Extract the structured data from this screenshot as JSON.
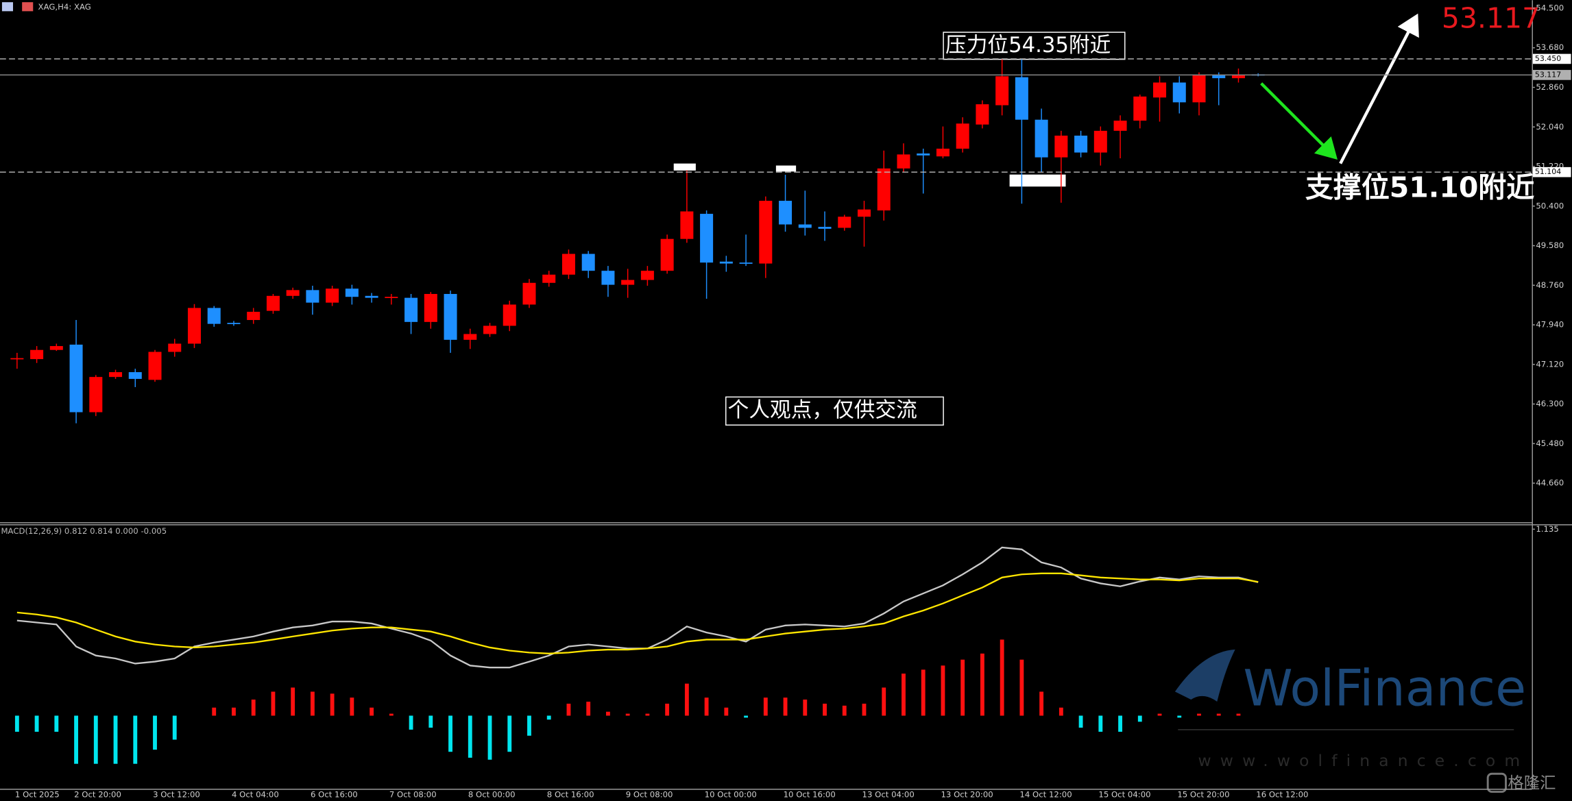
{
  "header": {
    "symbol": "XAG,H4: XAG"
  },
  "annotations": {
    "resistance": "压力位54.35附近",
    "support": "支撑位51.10附近",
    "price": "53.117",
    "disclaimer": "个人观点，仅供交流"
  },
  "watermark": {
    "brand": "WolFinance",
    "url": "www.wolfinance.com",
    "logo": "格隆汇"
  },
  "chart_data": [
    {
      "type": "candlestick",
      "categories": [
        "1 Oct 2025",
        null,
        null,
        "2 Oct 20:00",
        null,
        null,
        null,
        "3 Oct 12:00",
        null,
        null,
        null,
        "4 Oct 04:00",
        null,
        null,
        null,
        "6 Oct 16:00",
        null,
        null,
        null,
        "7 Oct 08:00",
        null,
        null,
        null,
        "8 Oct 00:00",
        null,
        null,
        null,
        "8 Oct 16:00",
        null,
        null,
        null,
        "9 Oct 08:00",
        null,
        null,
        null,
        "10 Oct 00:00",
        null,
        null,
        null,
        "10 Oct 16:00",
        null,
        null,
        null,
        "13 Oct 04:00",
        null,
        null,
        null,
        "13 Oct 20:00",
        null,
        null,
        null,
        "14 Oct 12:00",
        null,
        null,
        null,
        "15 Oct 04:00",
        null,
        null,
        null,
        "15 Oct 20:00",
        null,
        null,
        null,
        "16 Oct 12:00"
      ],
      "open": [
        47.23,
        47.23,
        47.42,
        47.53,
        46.13,
        46.86,
        46.96,
        46.8,
        47.38,
        47.55,
        48.29,
        47.98,
        48.04,
        48.23,
        48.54,
        48.66,
        48.4,
        48.69,
        48.54,
        48.5,
        48.5,
        48.0,
        48.58,
        47.63,
        47.75,
        47.92,
        48.36,
        48.81,
        48.98,
        49.41,
        49.06,
        48.77,
        48.87,
        49.06,
        49.72,
        50.24,
        49.25,
        49.23,
        49.21,
        50.51,
        50.02,
        49.97,
        49.95,
        50.18,
        50.31,
        51.18,
        51.49,
        51.43,
        51.59,
        52.09,
        52.49,
        53.07,
        52.19,
        51.41,
        51.86,
        51.51,
        51.96,
        52.17,
        52.65,
        52.96,
        52.55,
        53.11,
        53.05,
        53.13
      ],
      "high": [
        47.36,
        47.5,
        47.55,
        48.04,
        46.9,
        47.01,
        47.03,
        47.42,
        47.65,
        48.37,
        48.33,
        48.02,
        48.29,
        48.58,
        48.71,
        48.75,
        48.75,
        48.77,
        48.6,
        48.58,
        48.58,
        48.62,
        48.65,
        47.86,
        47.98,
        48.44,
        48.89,
        49.06,
        49.5,
        49.47,
        49.16,
        49.1,
        49.16,
        49.81,
        51.14,
        50.31,
        49.37,
        49.81,
        50.6,
        51.05,
        50.72,
        50.29,
        50.22,
        50.51,
        51.55,
        51.7,
        51.59,
        52.05,
        52.24,
        52.59,
        53.44,
        53.44,
        52.42,
        51.96,
        51.96,
        52.05,
        52.28,
        52.71,
        53.09,
        53.09,
        53.17,
        53.17,
        53.25,
        53.15
      ],
      "low": [
        47.03,
        47.15,
        47.4,
        45.9,
        46.05,
        46.82,
        46.65,
        46.76,
        47.28,
        47.46,
        47.9,
        47.92,
        47.96,
        48.17,
        48.48,
        48.15,
        48.33,
        48.36,
        48.4,
        48.36,
        47.75,
        47.86,
        47.36,
        47.44,
        47.69,
        47.81,
        48.29,
        48.73,
        48.89,
        48.91,
        48.52,
        48.5,
        48.75,
        49.0,
        49.64,
        48.48,
        49.04,
        49.16,
        48.91,
        49.87,
        49.79,
        49.68,
        49.89,
        49.56,
        50.1,
        51.1,
        50.66,
        51.39,
        51.51,
        52.01,
        52.28,
        50.45,
        51.1,
        50.47,
        51.41,
        51.24,
        51.39,
        52.01,
        52.15,
        52.32,
        52.28,
        52.49,
        52.96,
        53.09
      ],
      "close": [
        47.25,
        47.42,
        47.5,
        46.13,
        46.86,
        46.96,
        46.82,
        47.38,
        47.55,
        48.29,
        47.96,
        47.96,
        48.21,
        48.54,
        48.66,
        48.4,
        48.69,
        48.52,
        48.5,
        48.52,
        48.0,
        48.58,
        47.63,
        47.75,
        47.92,
        48.36,
        48.81,
        48.98,
        49.41,
        49.06,
        48.77,
        48.87,
        49.06,
        49.72,
        50.29,
        49.23,
        49.21,
        49.21,
        50.51,
        50.02,
        49.95,
        49.93,
        50.18,
        50.33,
        51.18,
        51.47,
        51.45,
        51.59,
        52.11,
        52.51,
        53.09,
        52.19,
        51.41,
        51.86,
        51.51,
        51.96,
        52.17,
        52.67,
        52.96,
        52.55,
        53.11,
        53.05,
        53.11,
        53.12
      ],
      "up_color": "#ff0000",
      "down_color": "#1e8fff",
      "ylim": [
        43.85,
        54.666
      ],
      "yticks": [
        {
          "value": 54.5,
          "label": "54.500"
        },
        {
          "value": 53.68,
          "label": "53.680"
        },
        {
          "value": 52.86,
          "label": "52.860"
        },
        {
          "value": 52.04,
          "label": "52.040"
        },
        {
          "value": 51.22,
          "label": "51.220"
        },
        {
          "value": 50.4,
          "label": "50.400"
        },
        {
          "value": 49.58,
          "label": "49.580"
        },
        {
          "value": 48.76,
          "label": "48.760"
        },
        {
          "value": 47.94,
          "label": "47.940"
        },
        {
          "value": 47.12,
          "label": "47.120"
        },
        {
          "value": 46.3,
          "label": "46.300"
        },
        {
          "value": 45.48,
          "label": "45.480"
        },
        {
          "value": 44.66,
          "label": "44.660"
        }
      ],
      "hlines": [
        {
          "value": 53.45,
          "label": "53.450",
          "style": "dashed"
        },
        {
          "value": 53.117,
          "label": "53.117",
          "style": "solid"
        },
        {
          "value": 51.104,
          "label": "51.104",
          "style": "dashed"
        }
      ],
      "grid": false
    },
    {
      "type": "macd",
      "title": "MACD(12,26,9) 0.812 0.814 0.000 -0.005",
      "ylim": [
        -0.445,
        1.165
      ],
      "yticks": [
        {
          "value": 1.135,
          "label": "1.135"
        }
      ],
      "series": [
        {
          "kind": "histogram",
          "color": "#ff1010",
          "negative_color": "#00e5ee",
          "values": [
            -0.098,
            -0.098,
            -0.098,
            -0.293,
            -0.293,
            -0.293,
            -0.293,
            -0.207,
            -0.146,
            0,
            0.049,
            0.049,
            0.098,
            0.146,
            0.171,
            0.146,
            0.134,
            0.11,
            0.049,
            0.012,
            -0.085,
            -0.073,
            -0.22,
            -0.256,
            -0.268,
            -0.22,
            -0.122,
            -0.024,
            0.073,
            0.085,
            0.024,
            0.012,
            0.012,
            0.073,
            0.195,
            0.11,
            0.049,
            -0.012,
            0.11,
            0.11,
            0.098,
            0.073,
            0.061,
            0.073,
            0.171,
            0.256,
            0.28,
            0.305,
            0.341,
            0.378,
            0.463,
            0.341,
            0.146,
            0.049,
            -0.073,
            -0.098,
            -0.098,
            -0.037,
            0.012,
            -0.012,
            0.012,
            0.012,
            0.012,
            0
          ]
        },
        {
          "kind": "line",
          "color": "#c8c8c8",
          "values": [
            0.579,
            0.567,
            0.555,
            0.421,
            0.366,
            0.348,
            0.317,
            0.329,
            0.348,
            0.421,
            0.445,
            0.463,
            0.482,
            0.512,
            0.537,
            0.549,
            0.573,
            0.573,
            0.561,
            0.53,
            0.5,
            0.457,
            0.366,
            0.305,
            0.293,
            0.293,
            0.329,
            0.366,
            0.421,
            0.433,
            0.421,
            0.409,
            0.409,
            0.463,
            0.543,
            0.506,
            0.482,
            0.451,
            0.524,
            0.549,
            0.555,
            0.549,
            0.543,
            0.561,
            0.622,
            0.695,
            0.744,
            0.793,
            0.86,
            0.933,
            1.024,
            1.012,
            0.933,
            0.902,
            0.835,
            0.805,
            0.787,
            0.817,
            0.841,
            0.829,
            0.848,
            0.841,
            0.841,
            0.812
          ]
        },
        {
          "kind": "line",
          "color": "#ffe600",
          "values": [
            0.628,
            0.616,
            0.598,
            0.567,
            0.524,
            0.482,
            0.451,
            0.433,
            0.421,
            0.415,
            0.421,
            0.433,
            0.445,
            0.463,
            0.482,
            0.5,
            0.518,
            0.53,
            0.537,
            0.537,
            0.524,
            0.512,
            0.482,
            0.445,
            0.415,
            0.396,
            0.384,
            0.378,
            0.384,
            0.396,
            0.402,
            0.402,
            0.409,
            0.421,
            0.451,
            0.463,
            0.463,
            0.463,
            0.482,
            0.5,
            0.512,
            0.524,
            0.53,
            0.543,
            0.561,
            0.604,
            0.64,
            0.683,
            0.732,
            0.78,
            0.841,
            0.86,
            0.866,
            0.866,
            0.854,
            0.841,
            0.835,
            0.829,
            0.829,
            0.823,
            0.835,
            0.835,
            0.835,
            0.814
          ]
        }
      ]
    }
  ]
}
